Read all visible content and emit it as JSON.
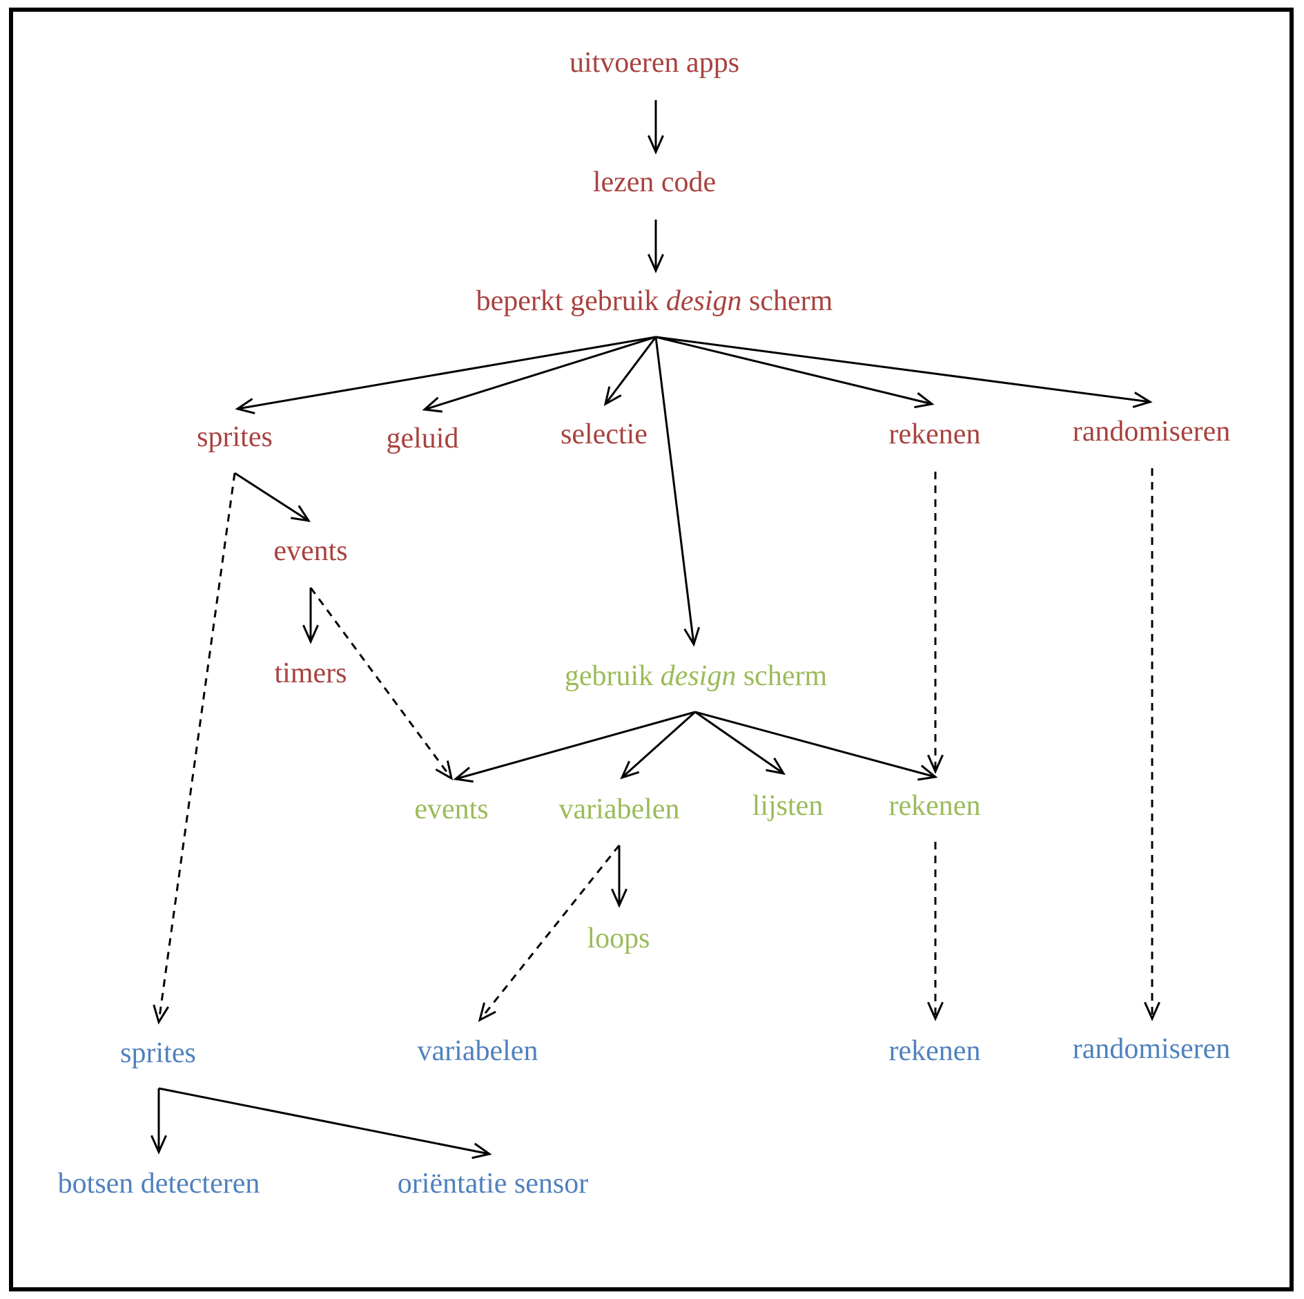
{
  "colors": {
    "red": "#a8423f",
    "green": "#9bbb59",
    "blue": "#4f81bd",
    "line": "#000000"
  },
  "nodes": {
    "uitvoeren_apps": {
      "text": "uitvoeren apps",
      "group": "red"
    },
    "lezen_code": {
      "text": "lezen code",
      "group": "red"
    },
    "beperkt_design": {
      "pre": "beperkt gebruik ",
      "em": "design",
      "post": " scherm",
      "group": "red"
    },
    "sprites_red": {
      "text": "sprites",
      "group": "red"
    },
    "geluid": {
      "text": "geluid",
      "group": "red"
    },
    "selectie": {
      "text": "selectie",
      "group": "red"
    },
    "rekenen_red": {
      "text": "rekenen",
      "group": "red"
    },
    "randomiseren_red": {
      "text": "randomiseren",
      "group": "red"
    },
    "events_red": {
      "text": "events",
      "group": "red"
    },
    "timers": {
      "text": "timers",
      "group": "red"
    },
    "gebruik_design": {
      "pre": "gebruik ",
      "em": "design",
      "post": " scherm",
      "group": "green"
    },
    "events_green": {
      "text": "events",
      "group": "green"
    },
    "variabelen_green": {
      "text": "variabelen",
      "group": "green"
    },
    "lijsten": {
      "text": "lijsten",
      "group": "green"
    },
    "rekenen_green": {
      "text": "rekenen",
      "group": "green"
    },
    "loops": {
      "text": "loops",
      "group": "green"
    },
    "sprites_blue": {
      "text": "sprites",
      "group": "blue"
    },
    "variabelen_blue": {
      "text": "variabelen",
      "group": "blue"
    },
    "rekenen_blue": {
      "text": "rekenen",
      "group": "blue"
    },
    "randomiseren_blue": {
      "text": "randomiseren",
      "group": "blue"
    },
    "botsen_detecteren": {
      "text": "botsen detecteren",
      "group": "blue"
    },
    "orientatie_sensor": {
      "text": "oriëntatie sensor",
      "group": "blue"
    }
  },
  "edges": [
    {
      "from": "uitvoeren_apps",
      "to": "lezen_code",
      "style": "solid"
    },
    {
      "from": "lezen_code",
      "to": "beperkt_design",
      "style": "solid"
    },
    {
      "from": "beperkt_design",
      "to": "sprites_red",
      "style": "solid"
    },
    {
      "from": "beperkt_design",
      "to": "geluid",
      "style": "solid"
    },
    {
      "from": "beperkt_design",
      "to": "selectie",
      "style": "solid"
    },
    {
      "from": "beperkt_design",
      "to": "gebruik_design",
      "style": "solid"
    },
    {
      "from": "beperkt_design",
      "to": "rekenen_red",
      "style": "solid"
    },
    {
      "from": "beperkt_design",
      "to": "randomiseren_red",
      "style": "solid"
    },
    {
      "from": "sprites_red",
      "to": "events_red",
      "style": "solid"
    },
    {
      "from": "sprites_red",
      "to": "sprites_blue",
      "style": "dashed"
    },
    {
      "from": "events_red",
      "to": "timers",
      "style": "solid"
    },
    {
      "from": "events_red",
      "to": "events_green",
      "style": "dashed"
    },
    {
      "from": "rekenen_red",
      "to": "rekenen_green",
      "style": "dashed"
    },
    {
      "from": "randomiseren_red",
      "to": "randomiseren_blue",
      "style": "dashed"
    },
    {
      "from": "gebruik_design",
      "to": "events_green",
      "style": "solid"
    },
    {
      "from": "gebruik_design",
      "to": "variabelen_green",
      "style": "solid"
    },
    {
      "from": "gebruik_design",
      "to": "lijsten",
      "style": "solid"
    },
    {
      "from": "gebruik_design",
      "to": "rekenen_green",
      "style": "solid"
    },
    {
      "from": "variabelen_green",
      "to": "loops",
      "style": "solid"
    },
    {
      "from": "variabelen_green",
      "to": "variabelen_blue",
      "style": "dashed"
    },
    {
      "from": "rekenen_green",
      "to": "rekenen_blue",
      "style": "dashed"
    },
    {
      "from": "sprites_blue",
      "to": "botsen_detecteren",
      "style": "solid"
    },
    {
      "from": "sprites_blue",
      "to": "orientatie_sensor",
      "style": "solid"
    }
  ]
}
